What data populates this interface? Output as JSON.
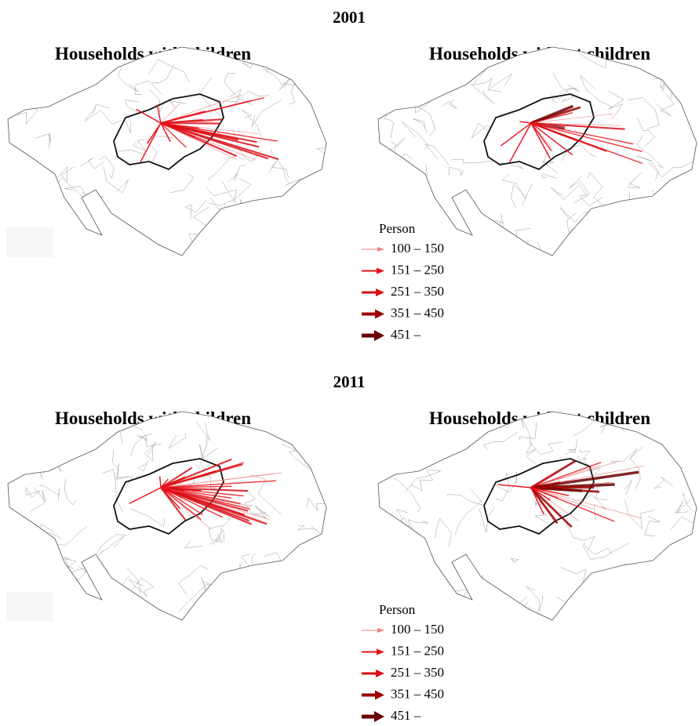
{
  "sections": [
    {
      "year": "2001",
      "maps": [
        {
          "title": "Households with children"
        },
        {
          "title": "Households without children"
        }
      ],
      "legend": {
        "title": "Person",
        "items": [
          {
            "label": "100 – 150",
            "color": "#f08080"
          },
          {
            "label": "151 – 250",
            "color": "#e8101a"
          },
          {
            "label": "251 – 350",
            "color": "#d90d14"
          },
          {
            "label": "351 – 450",
            "color": "#a00000"
          },
          {
            "label": "451 –",
            "color": "#6b0000"
          }
        ]
      }
    },
    {
      "year": "2011",
      "maps": [
        {
          "title": "Households with children"
        },
        {
          "title": "Households without children"
        }
      ],
      "legend": {
        "title": "Person",
        "items": [
          {
            "label": "100 – 150",
            "color": "#f08080"
          },
          {
            "label": "151 – 250",
            "color": "#e8101a"
          },
          {
            "label": "251 – 350",
            "color": "#d90d14"
          },
          {
            "label": "351 – 450",
            "color": "#a00000"
          },
          {
            "label": "451 –",
            "color": "#6b0000"
          }
        ]
      }
    }
  ]
}
